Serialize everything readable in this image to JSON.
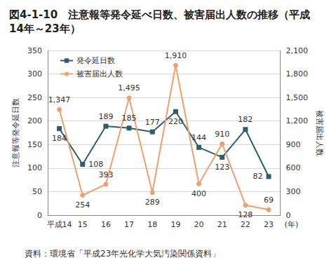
{
  "chart_data": {
    "type": "line",
    "title": "図4-1-10　注意報等発令延べ日数、被害届出人数の推移（平成14年～23年）",
    "source": "資料：環境省「平成23年光化学大気汚染関係資料」",
    "x_label": "(年)",
    "y_label": "注意報等発令延日数",
    "y2_label": "被害届出人数",
    "categories": [
      "平成14",
      "15",
      "16",
      "17",
      "18",
      "19",
      "20",
      "21",
      "22",
      "23"
    ],
    "series": [
      {
        "name": "発令延日数",
        "color": "#2f5d6b",
        "marker": "square",
        "values": [
          184,
          108,
          189,
          185,
          177,
          220,
          144,
          123,
          182,
          82
        ]
      },
      {
        "name": "被害届出人数",
        "color": "#f0a06e",
        "marker": "circle",
        "axis": "y2",
        "values": [
          1347,
          254,
          393,
          1495,
          289,
          1910,
          400,
          910,
          128,
          69
        ],
        "value_labels": [
          "1,347",
          "254",
          "393",
          "1,495",
          "289",
          "1,910",
          "400",
          "910",
          "128",
          "69"
        ]
      }
    ],
    "ylim": [
      0,
      350
    ],
    "yticks": [
      0,
      50,
      100,
      150,
      200,
      250,
      300,
      350
    ],
    "y2lim": [
      0,
      2100
    ],
    "y2ticks": [
      0,
      300,
      600,
      900,
      {
        "value": 1200,
        "label": "1,200"
      },
      {
        "value": 1500,
        "label": "1,500"
      },
      {
        "value": 1800,
        "label": "1,800"
      },
      {
        "value": 2100,
        "label": "2,100"
      }
    ],
    "grid": true,
    "legend": "upper left",
    "data_labels": true
  }
}
